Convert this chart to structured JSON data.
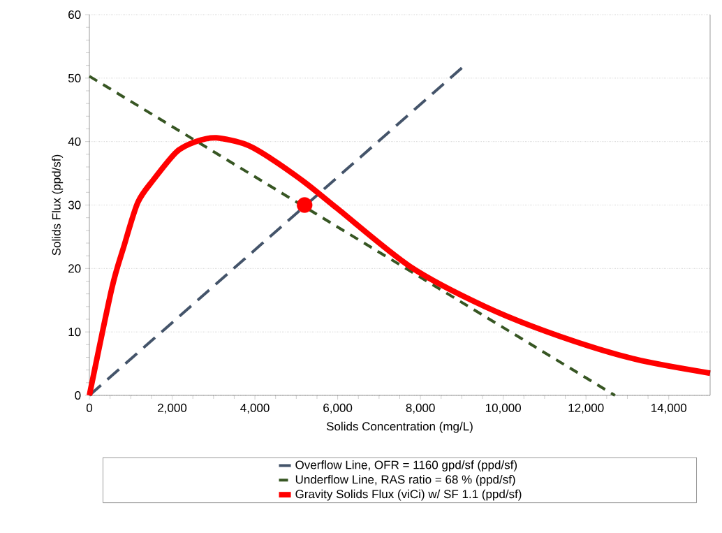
{
  "chart_data": {
    "type": "line",
    "xlabel": "Solids Concentration (mg/L)",
    "ylabel": "Solids Flux (ppd/sf)",
    "xlim": [
      0,
      15000
    ],
    "ylim": [
      0,
      60
    ],
    "xticks": [
      0,
      {
        "value": 2000,
        "label": "2,000"
      },
      {
        "value": 4000,
        "label": "4,000"
      },
      {
        "value": 6000,
        "label": "6,000"
      },
      {
        "value": 8000,
        "label": "8,000"
      },
      {
        "value": 10000,
        "label": "10,000"
      },
      {
        "value": 12000,
        "label": "12,000"
      },
      {
        "value": 14000,
        "label": "14,000"
      }
    ],
    "yticks": [
      0,
      10,
      20,
      30,
      40,
      50,
      60
    ],
    "grid": "y",
    "legend": "bottom",
    "series": [
      {
        "name": "Overflow Line, OFR = 1160 gpd/sf (ppd/sf)",
        "color": "#44546a",
        "line_style": "dashed",
        "x": [
          0,
          9000
        ],
        "values": [
          0,
          51.6
        ]
      },
      {
        "name": "Underflow  Line, RAS ratio  = 68 % (ppd/sf)",
        "color": "#375623",
        "line_style": "dashed",
        "x": [
          0,
          12700
        ],
        "values": [
          50.3,
          0
        ]
      },
      {
        "name": "Gravity Solids Flux (viCi) w/ SF  1.1 (ppd/sf)",
        "color": "#ff0000",
        "line_style": "solid",
        "x": [
          0,
          540,
          830,
          1170,
          1550,
          2110,
          2570,
          3070,
          3800,
          4370,
          5220,
          6000,
          7750,
          9560,
          11370,
          13190,
          15000
        ],
        "values": [
          0,
          16.8,
          23.4,
          30.4,
          34.0,
          38.4,
          40.0,
          40.6,
          39.5,
          37.4,
          33.5,
          29.4,
          20.3,
          14.0,
          9.3,
          5.7,
          3.5
        ]
      },
      {
        "type": "scatter",
        "color": "#ff0000",
        "marker": "circle",
        "x": [
          5200
        ],
        "values": [
          30
        ]
      }
    ]
  }
}
